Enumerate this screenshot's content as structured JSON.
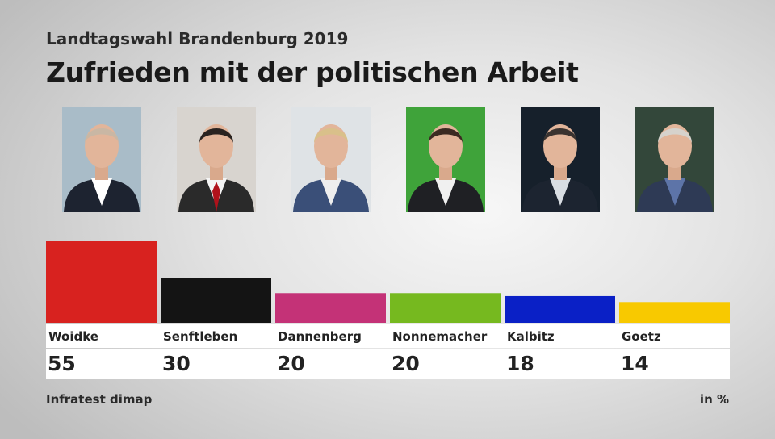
{
  "subtitle": "Landtagswahl Brandenburg 2019",
  "title": "Zufrieden mit der politischen Arbeit",
  "source": "Infratest dimap",
  "unit": "in %",
  "portraits": [
    {
      "name": "Woidke",
      "bg": "#a9bcc8",
      "suit": "#1d2330",
      "shirt": "#ffffff",
      "tie": null,
      "hair": "#c9b7a4"
    },
    {
      "name": "Senftleben",
      "bg": "#d8d4cf",
      "suit": "#2a2a2a",
      "shirt": "#f4f4f4",
      "tie": "#b0121b",
      "hair": "#2a2320"
    },
    {
      "name": "Dannenberg",
      "bg": "#dfe3e6",
      "suit": "#3a4f78",
      "shirt": "#eeeeee",
      "tie": null,
      "hair": "#d9c08a"
    },
    {
      "name": "Nonnemacher",
      "bg": "#3fa33a",
      "suit": "#1f2024",
      "shirt": "#f0f0f0",
      "tie": null,
      "hair": "#3b2a22"
    },
    {
      "name": "Kalbitz",
      "bg": "#16202b",
      "suit": "#1c2430",
      "shirt": "#d8dde2",
      "tie": null,
      "hair": "#3a3330"
    },
    {
      "name": "Goetz",
      "bg": "#33473a",
      "suit": "#2e3a55",
      "shirt": "#5d74a8",
      "tie": null,
      "hair": "#d6d2cc"
    }
  ],
  "chart_data": {
    "type": "bar",
    "title": "Zufrieden mit der politischen Arbeit",
    "subtitle": "Landtagswahl Brandenburg 2019",
    "categories": [
      "Woidke",
      "Senftleben",
      "Dannenberg",
      "Nonnemacher",
      "Kalbitz",
      "Goetz"
    ],
    "values": [
      55,
      30,
      20,
      20,
      18,
      14
    ],
    "colors": [
      "#d8221f",
      "#141414",
      "#c43277",
      "#76b91f",
      "#0a20c6",
      "#f8c900"
    ],
    "ylim": [
      0,
      55
    ],
    "unit": "in %",
    "grid": false,
    "legend": "none"
  }
}
